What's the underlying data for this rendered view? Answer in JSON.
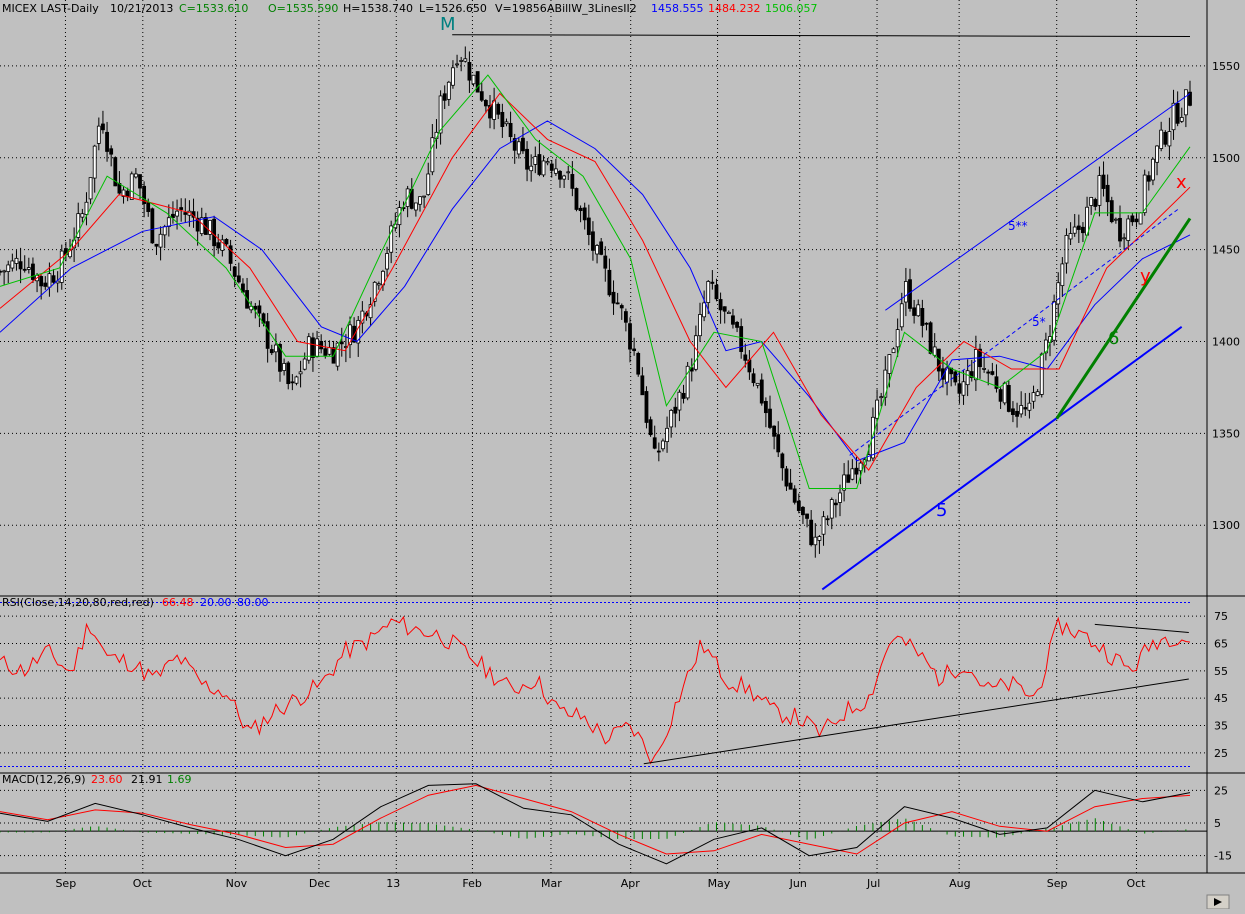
{
  "header": {
    "symbol": "MICEX LAST-Daily",
    "date": "10/21/2013",
    "close": "C=1533.610",
    "open": "O=1535.590",
    "high": "H=1538.740",
    "low": "L=1526.650",
    "volume": "V=19856",
    "indicator": "ABillW_3LinesII2",
    "ma_values": [
      "1458.555",
      "1484.232",
      "1506.057"
    ]
  },
  "colors": {
    "background": "#c0c0c0",
    "ma_slow": "#0000ff",
    "ma_mid": "#ff0000",
    "ma_fast": "#00c000",
    "rsi": "#ff0000",
    "macd": "#000000",
    "signal": "#ff0000",
    "histogram": "#008000",
    "wave_label_m": "#008080",
    "wave_label_6": "#008000",
    "wave_label_x": "#ff0000",
    "wave_label_y": "#ff0000"
  },
  "annotations": {
    "wave_m": "M",
    "wave_5": "5",
    "wave_5star": "5*",
    "wave_5starstar": "5**",
    "wave_6": "6",
    "wave_x": "x",
    "wave_y": "y"
  },
  "rsi_panel": {
    "label": "RSI(Close,14,20,80,red,red)",
    "value": "66.48",
    "lower": "20.00",
    "upper": "80.00"
  },
  "macd_panel": {
    "label": "MACD(12,26,9)",
    "macd": "23.60",
    "signal": "21.91",
    "hist": "1.69"
  },
  "chart_data": [
    {
      "type": "candlestick",
      "panel": "price",
      "ylim": [
        1262,
        1575
      ],
      "yticks": [
        1300,
        1350,
        1400,
        1450,
        1500,
        1550
      ],
      "x_months": [
        "Sep",
        "Oct",
        "Nov",
        "Dec",
        "13",
        "Feb",
        "Mar",
        "Apr",
        "May",
        "Jun",
        "Jul",
        "Aug",
        "Sep",
        "Oct"
      ],
      "close_series": [
        {
          "t": 0,
          "v": 1438
        },
        {
          "t": 0.02,
          "v": 1445
        },
        {
          "t": 0.035,
          "v": 1432
        },
        {
          "t": 0.05,
          "v": 1440
        },
        {
          "t": 0.07,
          "v": 1470
        },
        {
          "t": 0.085,
          "v": 1525
        },
        {
          "t": 0.1,
          "v": 1480
        },
        {
          "t": 0.115,
          "v": 1490
        },
        {
          "t": 0.13,
          "v": 1455
        },
        {
          "t": 0.15,
          "v": 1472
        },
        {
          "t": 0.17,
          "v": 1465
        },
        {
          "t": 0.19,
          "v": 1448
        },
        {
          "t": 0.21,
          "v": 1420
        },
        {
          "t": 0.23,
          "v": 1395
        },
        {
          "t": 0.245,
          "v": 1372
        },
        {
          "t": 0.26,
          "v": 1398
        },
        {
          "t": 0.28,
          "v": 1395
        },
        {
          "t": 0.3,
          "v": 1408
        },
        {
          "t": 0.32,
          "v": 1440
        },
        {
          "t": 0.34,
          "v": 1480
        },
        {
          "t": 0.355,
          "v": 1475
        },
        {
          "t": 0.37,
          "v": 1528
        },
        {
          "t": 0.385,
          "v": 1560
        },
        {
          "t": 0.4,
          "v": 1540
        },
        {
          "t": 0.415,
          "v": 1525
        },
        {
          "t": 0.43,
          "v": 1508
        },
        {
          "t": 0.445,
          "v": 1494
        },
        {
          "t": 0.46,
          "v": 1500
        },
        {
          "t": 0.475,
          "v": 1492
        },
        {
          "t": 0.5,
          "v": 1448
        },
        {
          "t": 0.52,
          "v": 1420
        },
        {
          "t": 0.535,
          "v": 1390
        },
        {
          "t": 0.55,
          "v": 1335
        },
        {
          "t": 0.565,
          "v": 1360
        },
        {
          "t": 0.58,
          "v": 1385
        },
        {
          "t": 0.595,
          "v": 1430
        },
        {
          "t": 0.61,
          "v": 1412
        },
        {
          "t": 0.625,
          "v": 1395
        },
        {
          "t": 0.64,
          "v": 1370
        },
        {
          "t": 0.655,
          "v": 1335
        },
        {
          "t": 0.67,
          "v": 1310
        },
        {
          "t": 0.685,
          "v": 1290
        },
        {
          "t": 0.7,
          "v": 1310
        },
        {
          "t": 0.715,
          "v": 1330
        },
        {
          "t": 0.73,
          "v": 1345
        },
        {
          "t": 0.745,
          "v": 1380
        },
        {
          "t": 0.76,
          "v": 1430
        },
        {
          "t": 0.775,
          "v": 1410
        },
        {
          "t": 0.79,
          "v": 1385
        },
        {
          "t": 0.805,
          "v": 1370
        },
        {
          "t": 0.82,
          "v": 1390
        },
        {
          "t": 0.835,
          "v": 1380
        },
        {
          "t": 0.85,
          "v": 1365
        },
        {
          "t": 0.865,
          "v": 1360
        },
        {
          "t": 0.88,
          "v": 1400
        },
        {
          "t": 0.895,
          "v": 1450
        },
        {
          "t": 0.91,
          "v": 1465
        },
        {
          "t": 0.925,
          "v": 1485
        },
        {
          "t": 0.94,
          "v": 1460
        },
        {
          "t": 0.955,
          "v": 1470
        },
        {
          "t": 0.97,
          "v": 1500
        },
        {
          "t": 0.985,
          "v": 1522
        },
        {
          "t": 1,
          "v": 1533
        }
      ],
      "ma_slow": [
        {
          "t": 0,
          "v": 1405
        },
        {
          "t": 0.06,
          "v": 1440
        },
        {
          "t": 0.12,
          "v": 1460
        },
        {
          "t": 0.18,
          "v": 1468
        },
        {
          "t": 0.22,
          "v": 1450
        },
        {
          "t": 0.27,
          "v": 1408
        },
        {
          "t": 0.3,
          "v": 1400
        },
        {
          "t": 0.34,
          "v": 1430
        },
        {
          "t": 0.38,
          "v": 1472
        },
        {
          "t": 0.42,
          "v": 1505
        },
        {
          "t": 0.46,
          "v": 1520
        },
        {
          "t": 0.5,
          "v": 1505
        },
        {
          "t": 0.54,
          "v": 1480
        },
        {
          "t": 0.58,
          "v": 1440
        },
        {
          "t": 0.61,
          "v": 1395
        },
        {
          "t": 0.64,
          "v": 1400
        },
        {
          "t": 0.68,
          "v": 1370
        },
        {
          "t": 0.72,
          "v": 1335
        },
        {
          "t": 0.76,
          "v": 1345
        },
        {
          "t": 0.8,
          "v": 1390
        },
        {
          "t": 0.84,
          "v": 1392
        },
        {
          "t": 0.88,
          "v": 1385
        },
        {
          "t": 0.92,
          "v": 1420
        },
        {
          "t": 0.96,
          "v": 1445
        },
        {
          "t": 1,
          "v": 1458
        }
      ],
      "ma_mid": [
        {
          "t": 0,
          "v": 1418
        },
        {
          "t": 0.06,
          "v": 1450
        },
        {
          "t": 0.1,
          "v": 1480
        },
        {
          "t": 0.16,
          "v": 1470
        },
        {
          "t": 0.21,
          "v": 1440
        },
        {
          "t": 0.25,
          "v": 1400
        },
        {
          "t": 0.29,
          "v": 1395
        },
        {
          "t": 0.33,
          "v": 1440
        },
        {
          "t": 0.38,
          "v": 1500
        },
        {
          "t": 0.42,
          "v": 1535
        },
        {
          "t": 0.46,
          "v": 1510
        },
        {
          "t": 0.5,
          "v": 1498
        },
        {
          "t": 0.54,
          "v": 1455
        },
        {
          "t": 0.58,
          "v": 1400
        },
        {
          "t": 0.61,
          "v": 1375
        },
        {
          "t": 0.65,
          "v": 1405
        },
        {
          "t": 0.69,
          "v": 1360
        },
        {
          "t": 0.73,
          "v": 1330
        },
        {
          "t": 0.77,
          "v": 1375
        },
        {
          "t": 0.81,
          "v": 1400
        },
        {
          "t": 0.85,
          "v": 1385
        },
        {
          "t": 0.89,
          "v": 1385
        },
        {
          "t": 0.93,
          "v": 1440
        },
        {
          "t": 0.97,
          "v": 1465
        },
        {
          "t": 1,
          "v": 1484
        }
      ],
      "ma_fast": [
        {
          "t": 0,
          "v": 1430
        },
        {
          "t": 0.05,
          "v": 1440
        },
        {
          "t": 0.09,
          "v": 1490
        },
        {
          "t": 0.14,
          "v": 1470
        },
        {
          "t": 0.19,
          "v": 1440
        },
        {
          "t": 0.24,
          "v": 1392
        },
        {
          "t": 0.28,
          "v": 1392
        },
        {
          "t": 0.32,
          "v": 1448
        },
        {
          "t": 0.37,
          "v": 1515
        },
        {
          "t": 0.41,
          "v": 1545
        },
        {
          "t": 0.45,
          "v": 1510
        },
        {
          "t": 0.49,
          "v": 1490
        },
        {
          "t": 0.53,
          "v": 1445
        },
        {
          "t": 0.56,
          "v": 1365
        },
        {
          "t": 0.6,
          "v": 1405
        },
        {
          "t": 0.64,
          "v": 1400
        },
        {
          "t": 0.68,
          "v": 1320
        },
        {
          "t": 0.72,
          "v": 1320
        },
        {
          "t": 0.76,
          "v": 1405
        },
        {
          "t": 0.8,
          "v": 1385
        },
        {
          "t": 0.84,
          "v": 1375
        },
        {
          "t": 0.88,
          "v": 1395
        },
        {
          "t": 0.92,
          "v": 1470
        },
        {
          "t": 0.96,
          "v": 1470
        },
        {
          "t": 1,
          "v": 1506
        }
      ],
      "trendlines": [
        {
          "name": "wave-5-line",
          "t1": 0.691,
          "v1": 1265,
          "t2": 0.993,
          "v2": 1408,
          "color": "#0000ff",
          "width": 2
        },
        {
          "name": "wave-5starstar-channel",
          "t1": 0.744,
          "v1": 1417,
          "t2": 1,
          "v2": 1535,
          "color": "#0000ff",
          "width": 1
        },
        {
          "name": "wave-5star-line",
          "t1": 0.714,
          "v1": 1338,
          "t2": 0.99,
          "v2": 1472,
          "color": "#0000ff",
          "width": 1,
          "dashed": true
        },
        {
          "name": "wave-6-line",
          "t1": 0.888,
          "v1": 1358,
          "t2": 1,
          "v2": 1467,
          "color": "#008000",
          "width": 3
        },
        {
          "name": "top-resistance-line",
          "t1": 0.38,
          "v1": 1567,
          "t2": 1,
          "v2": 1566,
          "color": "#000000",
          "width": 1
        }
      ]
    },
    {
      "type": "line",
      "panel": "rsi",
      "ylim": [
        18,
        82
      ],
      "yticks": [
        25,
        35,
        45,
        55,
        65,
        75
      ],
      "hlines": [
        20,
        80
      ],
      "series": [
        {
          "t": 0,
          "v": 58
        },
        {
          "t": 0.02,
          "v": 55
        },
        {
          "t": 0.04,
          "v": 62
        },
        {
          "t": 0.06,
          "v": 54
        },
        {
          "t": 0.075,
          "v": 73
        },
        {
          "t": 0.09,
          "v": 60
        },
        {
          "t": 0.11,
          "v": 58
        },
        {
          "t": 0.13,
          "v": 52
        },
        {
          "t": 0.15,
          "v": 60
        },
        {
          "t": 0.17,
          "v": 50
        },
        {
          "t": 0.19,
          "v": 47
        },
        {
          "t": 0.21,
          "v": 32
        },
        {
          "t": 0.23,
          "v": 40
        },
        {
          "t": 0.25,
          "v": 45
        },
        {
          "t": 0.27,
          "v": 50
        },
        {
          "t": 0.29,
          "v": 62
        },
        {
          "t": 0.31,
          "v": 66
        },
        {
          "t": 0.33,
          "v": 73
        },
        {
          "t": 0.35,
          "v": 70
        },
        {
          "t": 0.37,
          "v": 68
        },
        {
          "t": 0.39,
          "v": 62
        },
        {
          "t": 0.41,
          "v": 55
        },
        {
          "t": 0.43,
          "v": 48
        },
        {
          "t": 0.45,
          "v": 52
        },
        {
          "t": 0.47,
          "v": 40
        },
        {
          "t": 0.49,
          "v": 38
        },
        {
          "t": 0.51,
          "v": 30
        },
        {
          "t": 0.53,
          "v": 35
        },
        {
          "t": 0.55,
          "v": 22
        },
        {
          "t": 0.57,
          "v": 45
        },
        {
          "t": 0.59,
          "v": 65
        },
        {
          "t": 0.61,
          "v": 52
        },
        {
          "t": 0.63,
          "v": 48
        },
        {
          "t": 0.65,
          "v": 40
        },
        {
          "t": 0.67,
          "v": 38
        },
        {
          "t": 0.69,
          "v": 32
        },
        {
          "t": 0.71,
          "v": 40
        },
        {
          "t": 0.73,
          "v": 45
        },
        {
          "t": 0.75,
          "v": 68
        },
        {
          "t": 0.77,
          "v": 62
        },
        {
          "t": 0.79,
          "v": 52
        },
        {
          "t": 0.81,
          "v": 58
        },
        {
          "t": 0.83,
          "v": 48
        },
        {
          "t": 0.85,
          "v": 50
        },
        {
          "t": 0.87,
          "v": 45
        },
        {
          "t": 0.89,
          "v": 72
        },
        {
          "t": 0.91,
          "v": 68
        },
        {
          "t": 0.93,
          "v": 62
        },
        {
          "t": 0.95,
          "v": 55
        },
        {
          "t": 0.97,
          "v": 66
        },
        {
          "t": 0.99,
          "v": 68
        },
        {
          "t": 1,
          "v": 66
        }
      ],
      "trendlines": [
        {
          "name": "rsi-rising-support",
          "t1": 0.541,
          "v1": 21,
          "t2": 0.999,
          "v2": 52,
          "color": "#000000",
          "width": 1
        },
        {
          "name": "rsi-falling-resistance",
          "t1": 0.92,
          "v1": 72,
          "t2": 0.999,
          "v2": 69,
          "color": "#000000",
          "width": 1
        }
      ]
    },
    {
      "type": "line",
      "panel": "macd",
      "ylim": [
        -25,
        35
      ],
      "yticks": [
        -15,
        5,
        25
      ],
      "zero": 0,
      "macd_series": [
        {
          "t": 0,
          "v": 11
        },
        {
          "t": 0.04,
          "v": 6
        },
        {
          "t": 0.08,
          "v": 17
        },
        {
          "t": 0.12,
          "v": 10
        },
        {
          "t": 0.16,
          "v": 2
        },
        {
          "t": 0.2,
          "v": -5
        },
        {
          "t": 0.24,
          "v": -15
        },
        {
          "t": 0.28,
          "v": -5
        },
        {
          "t": 0.32,
          "v": 15
        },
        {
          "t": 0.36,
          "v": 28
        },
        {
          "t": 0.4,
          "v": 29
        },
        {
          "t": 0.44,
          "v": 14
        },
        {
          "t": 0.48,
          "v": 10
        },
        {
          "t": 0.52,
          "v": -8
        },
        {
          "t": 0.56,
          "v": -20
        },
        {
          "t": 0.6,
          "v": -5
        },
        {
          "t": 0.64,
          "v": 2
        },
        {
          "t": 0.68,
          "v": -15
        },
        {
          "t": 0.72,
          "v": -10
        },
        {
          "t": 0.76,
          "v": 15
        },
        {
          "t": 0.8,
          "v": 8
        },
        {
          "t": 0.84,
          "v": -2
        },
        {
          "t": 0.88,
          "v": 2
        },
        {
          "t": 0.92,
          "v": 25
        },
        {
          "t": 0.96,
          "v": 18
        },
        {
          "t": 1,
          "v": 23.6
        }
      ],
      "signal_series": [
        {
          "t": 0,
          "v": 12
        },
        {
          "t": 0.04,
          "v": 7
        },
        {
          "t": 0.08,
          "v": 13
        },
        {
          "t": 0.12,
          "v": 11
        },
        {
          "t": 0.16,
          "v": 4
        },
        {
          "t": 0.2,
          "v": -2
        },
        {
          "t": 0.24,
          "v": -10
        },
        {
          "t": 0.28,
          "v": -8
        },
        {
          "t": 0.32,
          "v": 8
        },
        {
          "t": 0.36,
          "v": 22
        },
        {
          "t": 0.4,
          "v": 28
        },
        {
          "t": 0.44,
          "v": 20
        },
        {
          "t": 0.48,
          "v": 12
        },
        {
          "t": 0.52,
          "v": -2
        },
        {
          "t": 0.56,
          "v": -14
        },
        {
          "t": 0.6,
          "v": -12
        },
        {
          "t": 0.64,
          "v": -2
        },
        {
          "t": 0.68,
          "v": -8
        },
        {
          "t": 0.72,
          "v": -14
        },
        {
          "t": 0.76,
          "v": 5
        },
        {
          "t": 0.8,
          "v": 12
        },
        {
          "t": 0.84,
          "v": 3
        },
        {
          "t": 0.88,
          "v": 0
        },
        {
          "t": 0.92,
          "v": 15
        },
        {
          "t": 0.96,
          "v": 20
        },
        {
          "t": 1,
          "v": 21.91
        }
      ]
    }
  ]
}
